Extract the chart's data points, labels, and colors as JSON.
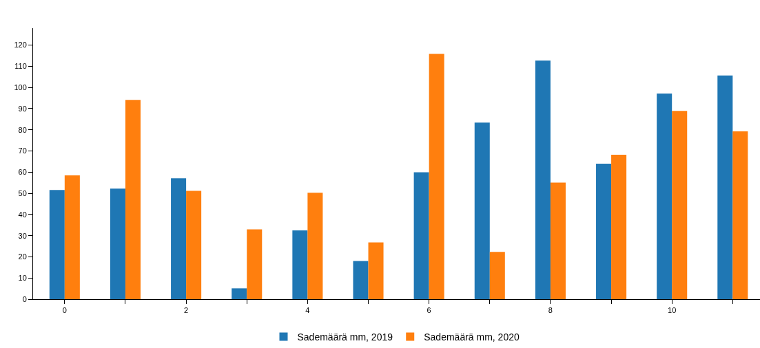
{
  "chart_data": {
    "type": "bar",
    "x": [
      0,
      1,
      2,
      3,
      4,
      5,
      6,
      7,
      8,
      9,
      10,
      11
    ],
    "series": [
      {
        "name": "Sademäärä mm, 2019",
        "color": "#1f77b4",
        "values": [
          51.6,
          52.2,
          57.1,
          5.1,
          32.5,
          18,
          59.9,
          83.4,
          112.7,
          64,
          97.1,
          105.7
        ]
      },
      {
        "name": "Sademäärä mm, 2020",
        "color": "#ff7f0e",
        "values": [
          58.5,
          94.1,
          51.2,
          33,
          50.3,
          26.8,
          115.9,
          22.3,
          55.1,
          68.2,
          88.9,
          79.3
        ]
      }
    ],
    "xlim": [
      -0.52,
      11.45
    ],
    "xticks": [
      0,
      {
        "value": 1,
        "label": null
      },
      2,
      {
        "value": 3,
        "label": null
      },
      4,
      {
        "value": 5,
        "label": null
      },
      6,
      {
        "value": 7,
        "label": null
      },
      8,
      {
        "value": 9,
        "label": null
      },
      10,
      {
        "value": 11,
        "label": null
      }
    ],
    "ylim": [
      0,
      128
    ],
    "yticks": [
      0,
      10,
      20,
      30,
      40,
      50,
      60,
      70,
      80,
      90,
      100,
      110,
      120
    ],
    "grid": false,
    "legend": "bottom"
  }
}
